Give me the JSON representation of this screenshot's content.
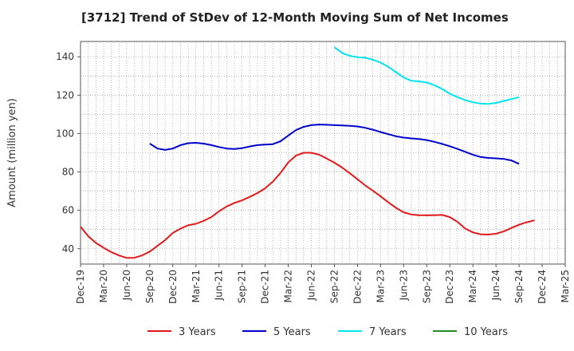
{
  "chart_data": {
    "type": "line",
    "title": "[3712]  Trend of StDev of 12-Month Moving Sum of Net Incomes",
    "xlabel": "",
    "ylabel": "Amount (million yen)",
    "ylim": [
      32,
      148
    ],
    "yticks": [
      40,
      60,
      80,
      100,
      120,
      140
    ],
    "grid": true,
    "legend_position": "bottom",
    "x_tick_labels": [
      "Dec-19",
      "Mar-20",
      "Jun-20",
      "Sep-20",
      "Dec-20",
      "Mar-21",
      "Jun-21",
      "Sep-21",
      "Dec-21",
      "Mar-22",
      "Jun-22",
      "Sep-22",
      "Dec-22",
      "Mar-23",
      "Jun-23",
      "Sep-23",
      "Dec-23",
      "Mar-24",
      "Jun-24",
      "Sep-24",
      "Dec-24",
      "Mar-25"
    ],
    "series": [
      {
        "name": "3 Years",
        "color": "#e31a1c",
        "points": [
          [
            0,
            51.5
          ],
          [
            1,
            46.5
          ],
          [
            2,
            43
          ],
          [
            3,
            40.5
          ],
          [
            4,
            38.2
          ],
          [
            5,
            36.5
          ],
          [
            6,
            35.2
          ],
          [
            7,
            35.3
          ],
          [
            8,
            36.5
          ],
          [
            9,
            38.5
          ],
          [
            10,
            41.5
          ],
          [
            11,
            44.5
          ],
          [
            12,
            48.2
          ],
          [
            13,
            50.5
          ],
          [
            14,
            52.2
          ],
          [
            15,
            53
          ],
          [
            16,
            54.5
          ],
          [
            17,
            56.5
          ],
          [
            18,
            59.5
          ],
          [
            19,
            62
          ],
          [
            20,
            63.8
          ],
          [
            21,
            65.2
          ],
          [
            22,
            67
          ],
          [
            23,
            69
          ],
          [
            24,
            71.5
          ],
          [
            25,
            75
          ],
          [
            26,
            79.5
          ],
          [
            27,
            85
          ],
          [
            28,
            88.5
          ],
          [
            29,
            90
          ],
          [
            30,
            90
          ],
          [
            31,
            89
          ],
          [
            32,
            87
          ],
          [
            33,
            84.8
          ],
          [
            34,
            82.3
          ],
          [
            35,
            79.3
          ],
          [
            36,
            76.2
          ],
          [
            37,
            73
          ],
          [
            38,
            70.2
          ],
          [
            39,
            67.3
          ],
          [
            40,
            64.2
          ],
          [
            41,
            61.3
          ],
          [
            42,
            59
          ],
          [
            43,
            57.8
          ],
          [
            44,
            57.5
          ],
          [
            45,
            57.4
          ],
          [
            46,
            57.5
          ],
          [
            47,
            57.6
          ],
          [
            48,
            56.5
          ],
          [
            49,
            54
          ],
          [
            50,
            50.5
          ],
          [
            51,
            48.5
          ],
          [
            52,
            47.5
          ],
          [
            53,
            47.4
          ],
          [
            54,
            47.8
          ],
          [
            55,
            49
          ],
          [
            56,
            50.8
          ],
          [
            57,
            52.5
          ],
          [
            58,
            53.8
          ],
          [
            59,
            54.8
          ]
        ]
      },
      {
        "name": "5 Years",
        "color": "#0000cc",
        "points": [
          [
            9,
            94.8
          ],
          [
            10,
            92.2
          ],
          [
            11,
            91.5
          ],
          [
            12,
            92.2
          ],
          [
            13,
            94
          ],
          [
            14,
            95
          ],
          [
            15,
            95.2
          ],
          [
            16,
            94.8
          ],
          [
            17,
            94
          ],
          [
            18,
            93
          ],
          [
            19,
            92.2
          ],
          [
            20,
            92
          ],
          [
            21,
            92.4
          ],
          [
            22,
            93.3
          ],
          [
            23,
            94
          ],
          [
            24,
            94.3
          ],
          [
            25,
            94.5
          ],
          [
            26,
            96
          ],
          [
            27,
            99
          ],
          [
            28,
            101.8
          ],
          [
            29,
            103.5
          ],
          [
            30,
            104.4
          ],
          [
            31,
            104.7
          ],
          [
            32,
            104.6
          ],
          [
            33,
            104.4
          ],
          [
            34,
            104.2
          ],
          [
            35,
            104
          ],
          [
            36,
            103.7
          ],
          [
            37,
            103
          ],
          [
            38,
            102
          ],
          [
            39,
            100.8
          ],
          [
            40,
            99.7
          ],
          [
            41,
            98.6
          ],
          [
            42,
            97.9
          ],
          [
            43,
            97.5
          ],
          [
            44,
            97.2
          ],
          [
            45,
            96.6
          ],
          [
            46,
            95.7
          ],
          [
            47,
            94.6
          ],
          [
            48,
            93.4
          ],
          [
            49,
            92
          ],
          [
            50,
            90.5
          ],
          [
            51,
            89
          ],
          [
            52,
            87.8
          ],
          [
            53,
            87.3
          ],
          [
            54,
            87.1
          ],
          [
            55,
            86.8
          ],
          [
            56,
            86
          ],
          [
            57,
            84.2
          ]
        ]
      },
      {
        "name": "7 Years",
        "color": "#00e5ee",
        "points": [
          [
            33,
            145
          ],
          [
            34,
            142
          ],
          [
            35,
            140.5
          ],
          [
            36,
            139.8
          ],
          [
            37,
            139.5
          ],
          [
            38,
            138.5
          ],
          [
            39,
            137
          ],
          [
            40,
            134.8
          ],
          [
            41,
            132
          ],
          [
            42,
            129.2
          ],
          [
            43,
            127.5
          ],
          [
            44,
            127.2
          ],
          [
            45,
            126.6
          ],
          [
            46,
            125.2
          ],
          [
            47,
            123.2
          ],
          [
            48,
            120.8
          ],
          [
            49,
            119
          ],
          [
            50,
            117.5
          ],
          [
            51,
            116.3
          ],
          [
            52,
            115.6
          ],
          [
            53,
            115.5
          ],
          [
            54,
            116
          ],
          [
            55,
            117
          ],
          [
            56,
            118
          ],
          [
            57,
            119
          ]
        ]
      },
      {
        "name": "10 Years",
        "color": "#228b22",
        "points": []
      }
    ]
  }
}
